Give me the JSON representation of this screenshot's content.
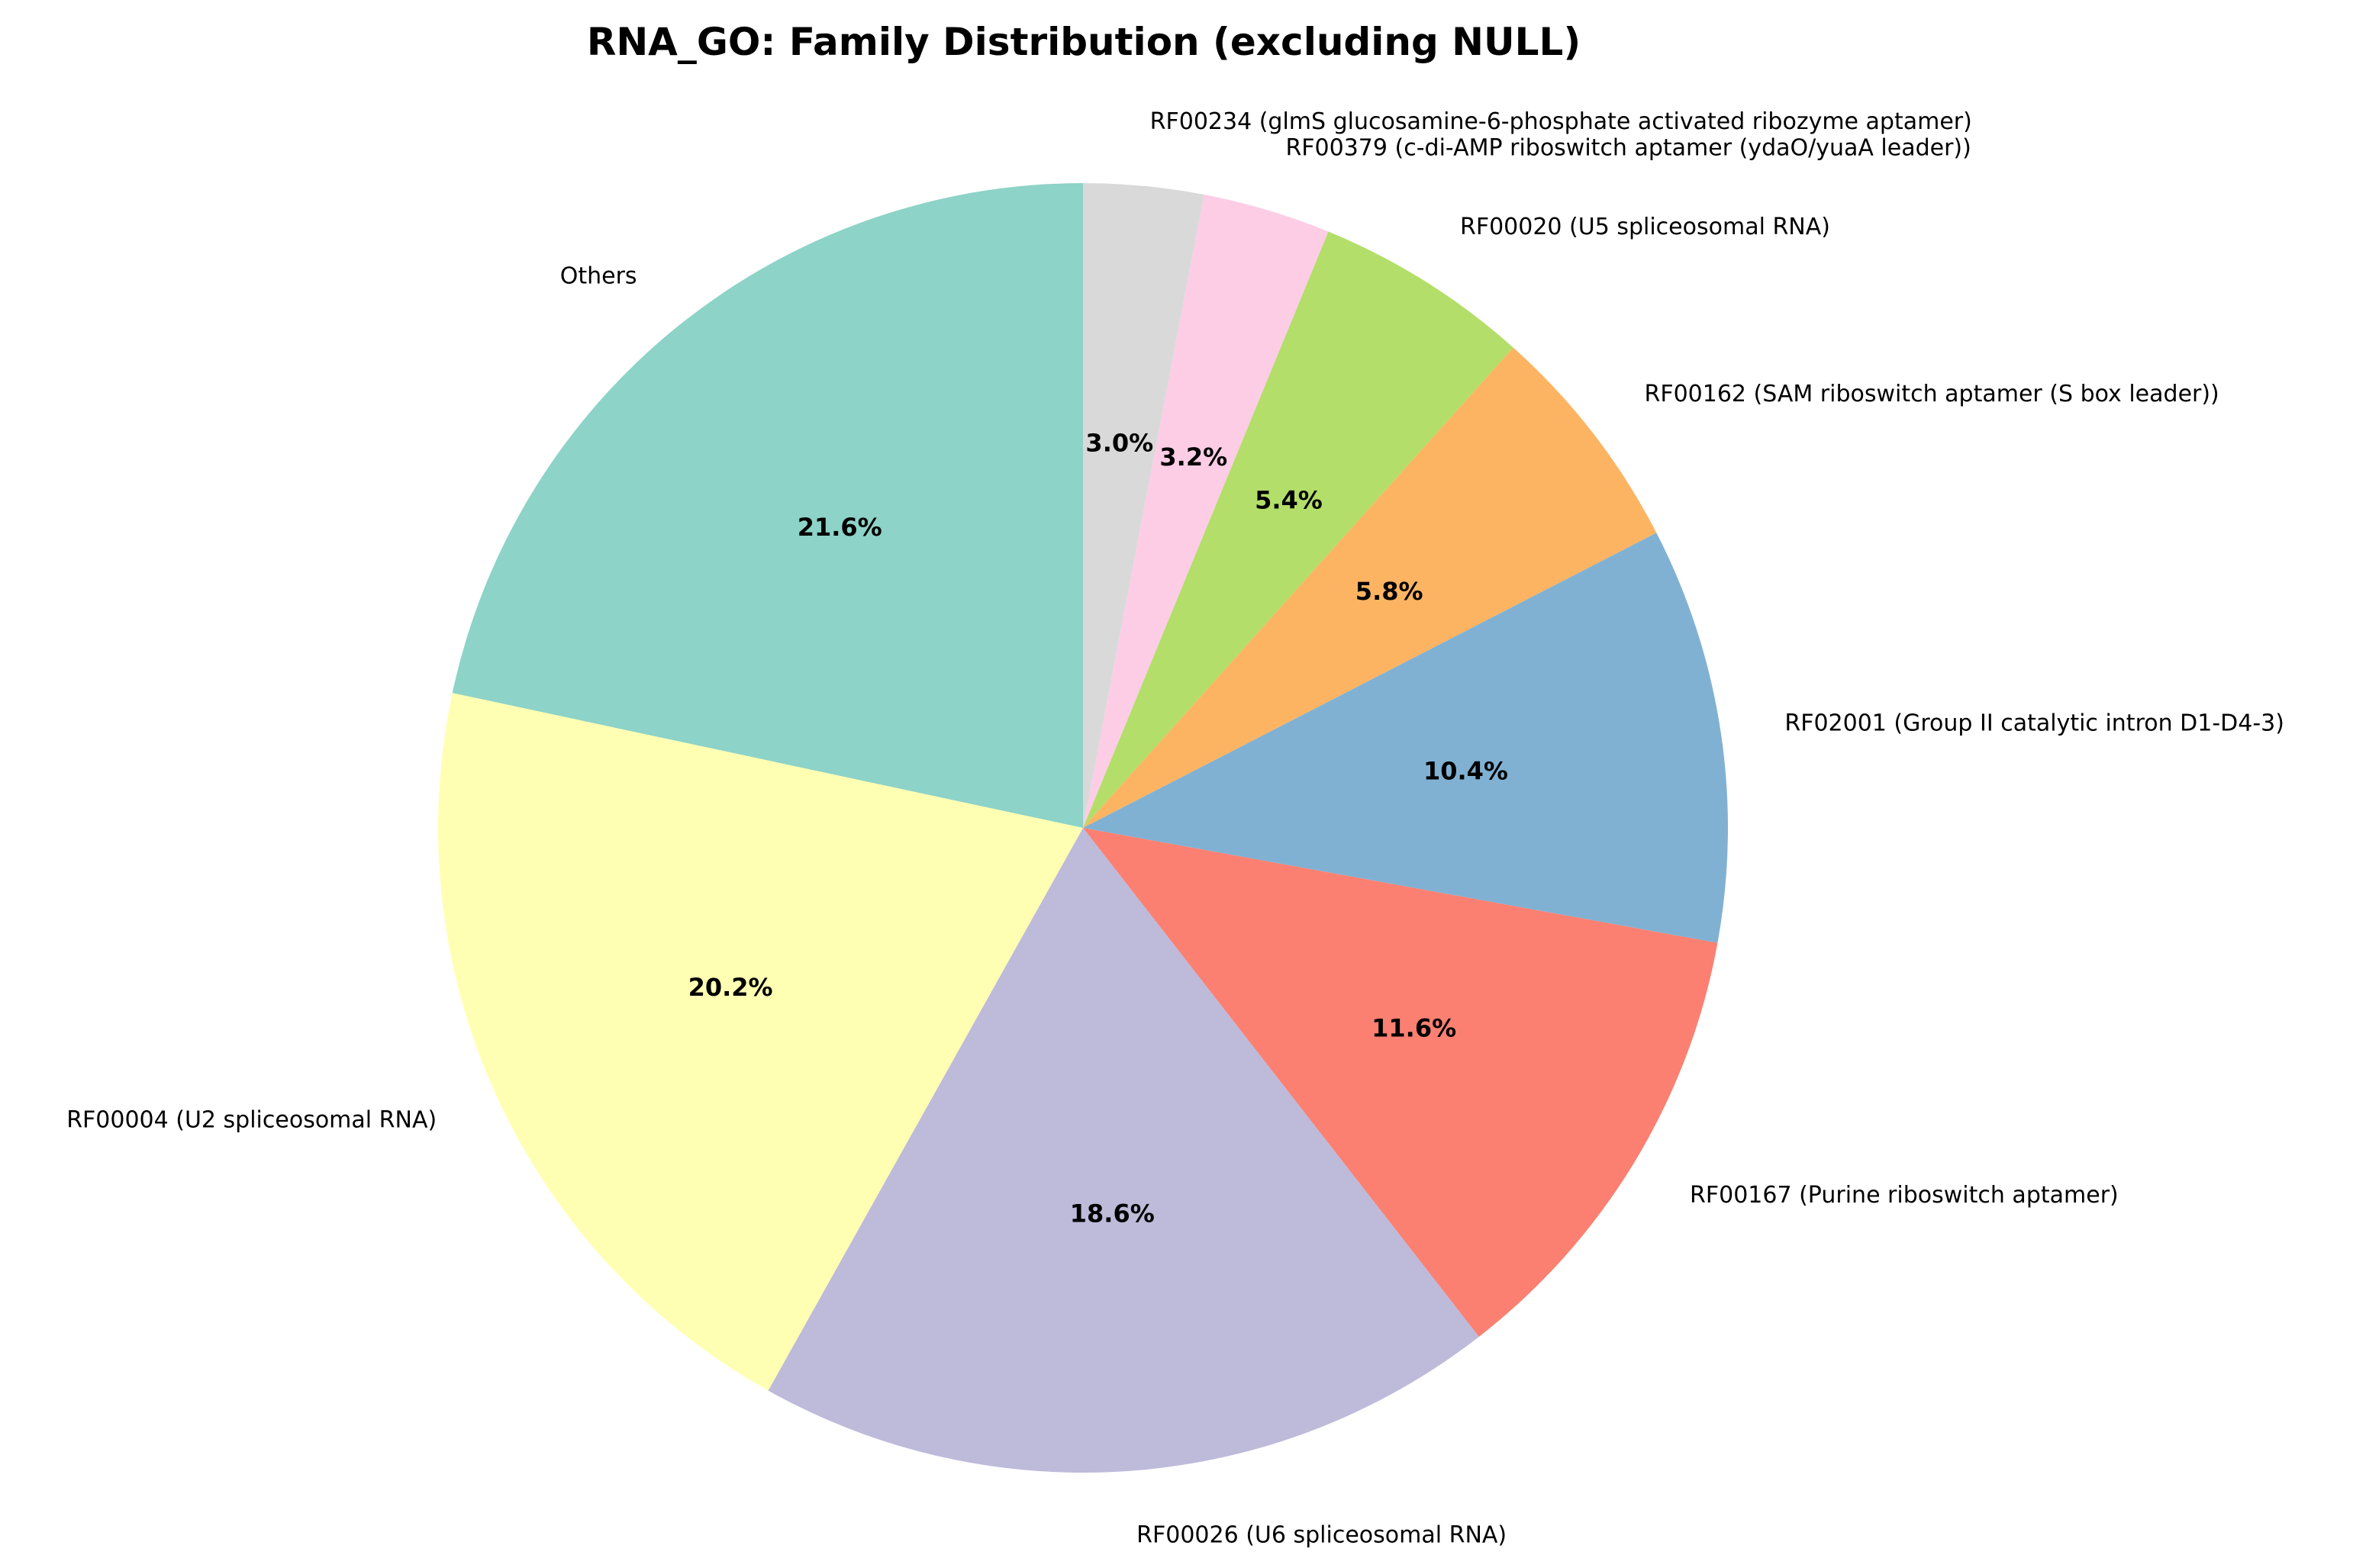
{
  "chart_data": {
    "type": "pie",
    "title": "RNA_GO: Family Distribution (excluding NULL)",
    "start_angle_deg": 90,
    "direction": "clockwise",
    "slices": [
      {
        "label": "RF00234 (glmS glucosamine-6-phosphate activated ribozyme aptamer)",
        "value": 3.0,
        "pct_label": "3.0%",
        "color": "#d9d9d9"
      },
      {
        "label": "RF00379 (c-di-AMP riboswitch aptamer (ydaO/yuaA leader))",
        "value": 3.2,
        "pct_label": "3.2%",
        "color": "#fccde5"
      },
      {
        "label": "RF00020 (U5 spliceosomal RNA)",
        "value": 5.4,
        "pct_label": "5.4%",
        "color": "#b3de69"
      },
      {
        "label": "RF00162 (SAM riboswitch aptamer (S box leader))",
        "value": 5.8,
        "pct_label": "5.8%",
        "color": "#fdb462"
      },
      {
        "label": "RF02001 (Group II catalytic intron D1-D4-3)",
        "value": 10.4,
        "pct_label": "10.4%",
        "color": "#80b1d3"
      },
      {
        "label": "RF00167 (Purine riboswitch aptamer)",
        "value": 11.6,
        "pct_label": "11.6%",
        "color": "#fb8072"
      },
      {
        "label": "RF00026 (U6 spliceosomal RNA)",
        "value": 18.6,
        "pct_label": "18.6%",
        "color": "#bebada"
      },
      {
        "label": "RF00004 (U2 spliceosomal RNA)",
        "value": 20.2,
        "pct_label": "20.2%",
        "color": "#ffffb3"
      },
      {
        "label": "Others",
        "value": 21.6,
        "pct_label": "21.6%",
        "color": "#8dd3c7"
      }
    ]
  }
}
